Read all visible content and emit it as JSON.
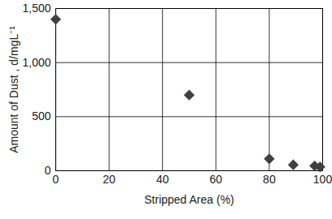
{
  "chart_data": {
    "type": "scatter",
    "x": [
      0,
      50,
      80,
      89,
      97,
      99
    ],
    "values": [
      1400,
      700,
      110,
      55,
      45,
      35
    ],
    "xlabel": "Stripped Area (%)",
    "ylabel": "Amount of Dust , d/mgL⁻¹",
    "xlim": [
      0,
      100
    ],
    "xticks": [
      0,
      20,
      40,
      60,
      80,
      100
    ],
    "ylim": [
      0,
      1500
    ],
    "yticks": [
      0,
      500,
      1000,
      1500
    ],
    "grid": true,
    "color": "#404040",
    "marker": "diamond"
  }
}
